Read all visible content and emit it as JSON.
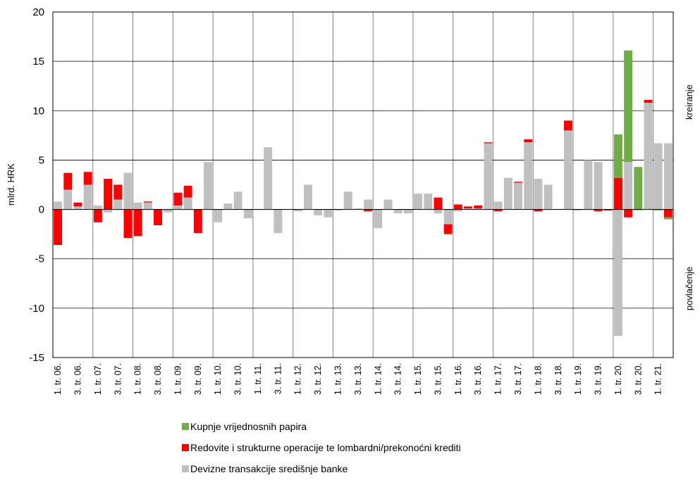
{
  "chart_data": {
    "type": "bar",
    "stacked": true,
    "ylabel": "mlrd. HRK",
    "annotations": [
      "kreiranje",
      "povlačenje"
    ],
    "categories": [
      "1. tr. 06.",
      null,
      "3. tr. 06.",
      null,
      "1. tr. 07.",
      null,
      "3. tr. 07.",
      null,
      "1. tr. 08.",
      null,
      "3. tr. 08.",
      null,
      "1. tr. 09.",
      null,
      "3. tr. 09.",
      null,
      "1. tr. 10.",
      null,
      "3. tr. 10.",
      null,
      "1. tr. 11.",
      null,
      "3. tr. 11.",
      null,
      "1. tr. 12.",
      null,
      "3. tr. 12.",
      null,
      "1. tr. 13.",
      null,
      "3. tr. 13.",
      null,
      "1. tr. 14.",
      null,
      "3. tr. 14.",
      null,
      "1. tr. 15.",
      null,
      "3. tr. 15.",
      null,
      "1. tr. 16.",
      null,
      "3. tr. 16.",
      null,
      "1. tr. 17.",
      null,
      "3. tr. 17.",
      null,
      "1. tr. 18.",
      null,
      "3. tr. 18.",
      null,
      "1. tr. 19.",
      null,
      "3. tr. 19.",
      null,
      "1. tr. 20.",
      null,
      "3. tr. 20.",
      null,
      "1. tr. 21.",
      null
    ],
    "series": [
      {
        "name": "Devizne transakcije središnje banke",
        "color": "#c0c0c0",
        "values": [
          0.8,
          2.0,
          0.3,
          2.5,
          0.4,
          -0.3,
          1.0,
          3.7,
          0.7,
          0.7,
          0,
          -0.3,
          0.4,
          1.2,
          0,
          4.8,
          -1.3,
          0.6,
          1.8,
          -0.9,
          0,
          6.3,
          -2.4,
          0,
          -0.2,
          2.5,
          -0.6,
          -0.8,
          -0.1,
          1.8,
          0.1,
          1.0,
          -1.9,
          1.0,
          -0.4,
          -0.4,
          1.6,
          1.6,
          -0.4,
          -1.5,
          -0.2,
          0.1,
          0.1,
          6.7,
          0.8,
          3.2,
          2.7,
          6.8,
          3.1,
          2.5,
          0,
          8.0,
          -0.1,
          5.0,
          4.8,
          0,
          -12.8,
          4.8,
          -0.1,
          10.8,
          6.7,
          6.7
        ]
      },
      {
        "name": "Redovite i strukturne operacije te lombardni/prekonoćni krediti",
        "color": "#ff0000",
        "values": [
          -3.6,
          1.7,
          0.4,
          1.3,
          -1.3,
          3.1,
          1.5,
          -2.9,
          -2.7,
          0.1,
          -1.6,
          0,
          1.3,
          1.2,
          -2.4,
          0,
          0,
          0,
          0,
          0,
          0,
          0,
          0,
          0,
          0,
          0,
          0,
          0,
          0,
          0,
          0,
          -0.2,
          0,
          0,
          0,
          0,
          0,
          0,
          1.2,
          -1.0,
          0.5,
          0.2,
          0.3,
          0.1,
          -0.2,
          0,
          0.1,
          0.3,
          -0.2,
          0,
          0,
          1.0,
          0,
          0,
          -0.2,
          -0.1,
          3.2,
          -0.8,
          0,
          0.3,
          0,
          -0.8
        ]
      },
      {
        "name": "Kupnje vrijednosnih papira",
        "color": "#70ad47",
        "values": [
          0,
          0,
          0,
          0,
          0,
          0,
          0,
          0,
          0,
          0,
          0,
          0,
          0,
          0,
          0,
          0,
          0,
          0,
          0,
          0,
          0,
          0,
          0,
          0,
          0,
          0,
          0,
          0,
          0,
          0,
          0,
          0,
          0,
          0,
          0,
          0,
          0,
          0,
          0,
          0,
          0,
          0,
          0,
          0,
          0,
          0,
          0,
          0,
          0,
          0,
          0,
          0,
          0,
          0,
          0,
          0,
          4.4,
          11.3,
          4.3,
          0,
          -0.1,
          -0.2
        ]
      }
    ],
    "ylim": [
      -15,
      20
    ],
    "yticks": [
      -15,
      -10,
      -5,
      0,
      5,
      10,
      15,
      20
    ],
    "grid": true,
    "legend": "bottom"
  }
}
